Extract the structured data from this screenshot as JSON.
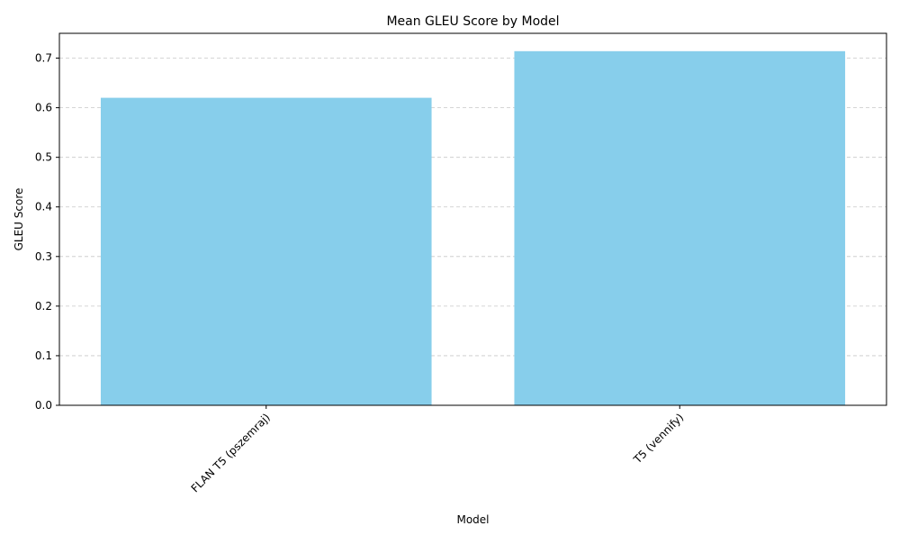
{
  "chart_data": {
    "type": "bar",
    "title": "Mean GLEU Score by Model",
    "xlabel": "Model",
    "ylabel": "GLEU Score",
    "categories": [
      "FLAN T5 (pszemraj)",
      "T5 (vennify)"
    ],
    "values": [
      0.62,
      0.714
    ],
    "ylim": [
      0,
      0.75
    ],
    "yticks": [
      0.0,
      0.1,
      0.2,
      0.3,
      0.4,
      0.5,
      0.6,
      0.7
    ],
    "ytick_labels": [
      "0.0",
      "0.1",
      "0.2",
      "0.3",
      "0.4",
      "0.5",
      "0.6",
      "0.7"
    ],
    "grid": "y-axis dashed",
    "bar_color": "#87CEEB",
    "grid_color": "#c8c8c8",
    "xtick_rotation": "45 degrees"
  }
}
